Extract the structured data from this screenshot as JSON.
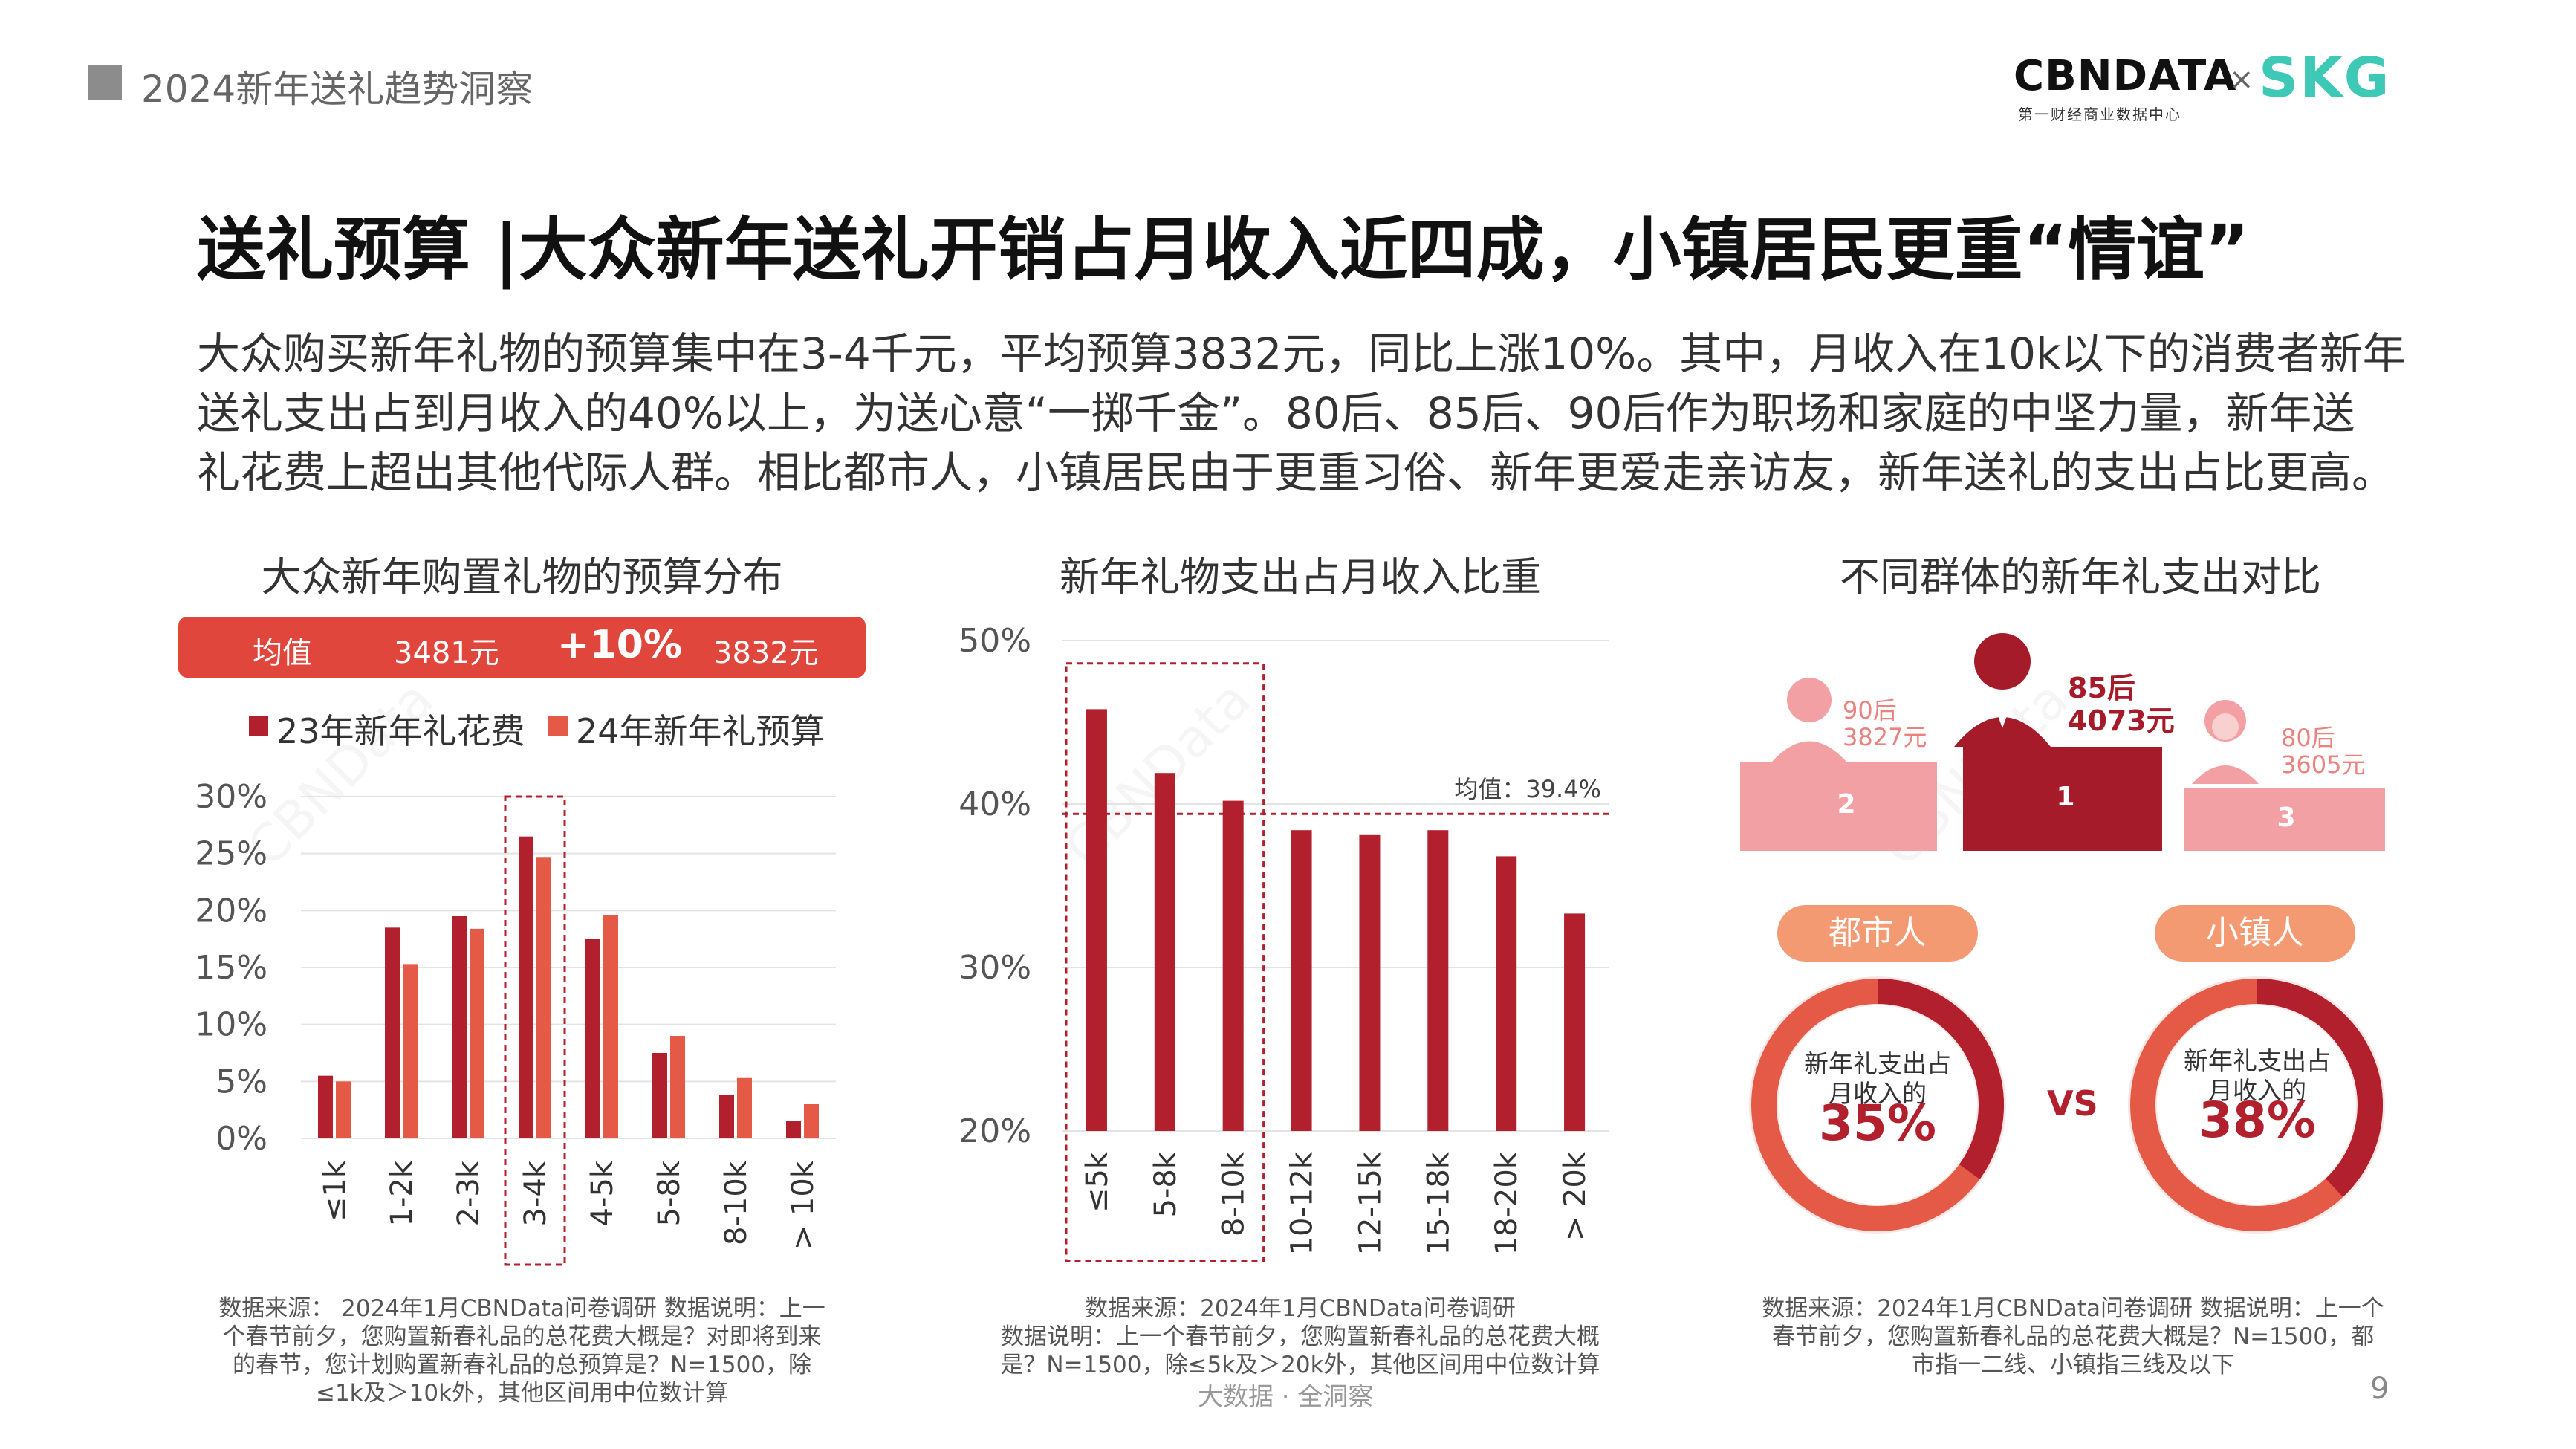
{
  "header": {
    "title": "2024新年送礼趋势洞察"
  },
  "logos": {
    "cbndata": "CBNDATA",
    "cbndata_sub": "第一财经商业数据中心",
    "times": "×",
    "skg": "SKG"
  },
  "main_title": "送礼预算 |大众新年送礼开销占月收入近四成，小镇居民更重“情谊”",
  "intro_lines": [
    "大众购买新年礼物的预算集中在3-4千元，平均预算3832元，同比上涨10%。其中，月收入在10k以下的消费者新年",
    "送礼支出占到月收入的40%以上，为送心意“一掷千金”。80后、85后、90后作为职场和家庭的中坚力量，新年送",
    "礼花费上超出其他代际人群。相比都市人，小镇居民由于更重习俗、新年更爱走亲访友，新年送礼的支出占比更高。"
  ],
  "avg_bar": {
    "label": "均值",
    "v23": "3481元",
    "change": "+10%",
    "v24": "3832元"
  },
  "colors": {
    "dark_red": "#b21f2d",
    "light_red": "#e45a46",
    "pink": "#f3a0a4",
    "orange_pill": "#f39a73"
  },
  "chart_data": [
    {
      "type": "bar",
      "title": "大众新年购置礼物的预算分布",
      "categories": [
        "≤1k",
        "1-2k",
        "2-3k",
        "3-4k",
        "4-5k",
        "5-8k",
        "8-10k",
        "> 10k"
      ],
      "series": [
        {
          "name": "23年新年礼花费",
          "color": "#b21f2d",
          "values": [
            5.5,
            18.5,
            19.5,
            26.5,
            17.5,
            7.5,
            3.8,
            1.5
          ]
        },
        {
          "name": "24年新年礼预算",
          "color": "#e45a46",
          "values": [
            5.0,
            15.3,
            18.4,
            24.7,
            19.6,
            9.0,
            5.3,
            3.0
          ]
        }
      ],
      "ylim": [
        0,
        30
      ],
      "yticks": [
        "30%",
        "25%",
        "20%",
        "15%",
        "10%",
        "5%",
        "0%"
      ],
      "legend": "top",
      "highlight_category": "3-4k"
    },
    {
      "type": "bar",
      "title": "新年礼物支出占月收入比重",
      "categories": [
        "≤5k",
        "5-8k",
        "8-10k",
        "10-12k",
        "12-15k",
        "15-18k",
        "18-20k",
        "> 20k"
      ],
      "series": [
        {
          "color": "#b21f2d",
          "values": [
            45.8,
            41.9,
            40.2,
            38.4,
            38.1,
            38.4,
            36.8,
            33.3
          ]
        }
      ],
      "ylim": [
        20,
        50
      ],
      "yticks": [
        "50%",
        "40%",
        "30%",
        "20%"
      ],
      "reference_line": {
        "value": 39.4,
        "label": "均值：39.4%"
      },
      "highlight_categories": [
        "≤5k",
        "5-8k",
        "8-10k"
      ]
    },
    {
      "type": "pie",
      "title": "不同群体的新年礼支出对比",
      "podium": [
        {
          "rank": "1",
          "group": "85后",
          "value": "4073元"
        },
        {
          "rank": "2",
          "group": "90后",
          "value": "3827元"
        },
        {
          "rank": "3",
          "group": "80后",
          "value": "3605元"
        }
      ],
      "donuts": [
        {
          "group": "都市人",
          "caption": "新年礼支出占\n月收入的",
          "caption_l1": "新年礼支出占",
          "caption_l2": "月收入的",
          "pct_text": "35%",
          "value": 35
        },
        {
          "group": "小镇人",
          "caption_l1": "新年礼支出占",
          "caption_l2": "月收入的",
          "pct_text": "38%",
          "value": 38
        }
      ],
      "vs": "VS"
    }
  ],
  "notes": {
    "left": [
      "数据来源： 2024年1月CBNData问卷调研 数据说明：上一",
      "个春节前夕，您购置新春礼品的总花费大概是？对即将到来",
      "的春节，您计划购置新春礼品的总预算是？N=1500，除",
      "≤1k及＞10k外，其他区间用中位数计算"
    ],
    "middle": [
      "数据来源：2024年1月CBNData问卷调研",
      "数据说明：上一个春节前夕，您购置新春礼品的总花费大概",
      "是？N=1500，除≤5k及＞20k外，其他区间用中位数计算"
    ],
    "right": [
      "数据来源：2024年1月CBNData问卷调研 数据说明：上一个",
      "春节前夕，您购置新春礼品的总花费大概是？N=1500，都",
      "市指一二线、小镇指三线及以下"
    ]
  },
  "footer": {
    "center": "大数据 · 全洞察",
    "page": "9"
  }
}
